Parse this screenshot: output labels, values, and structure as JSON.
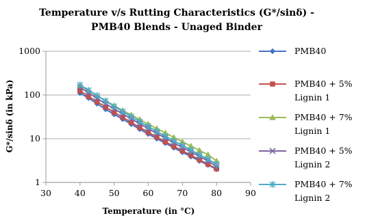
{
  "chart_data": {
    "type": "line",
    "title_lines": [
      "Temperature v/s Rutting Characteristics (G*/sinδ) -",
      "PMB40 Blends - Unaged Binder"
    ],
    "xlabel": "Temperature (in °C)",
    "ylabel": "G*/sinδ (in kPa)",
    "xlim": [
      30,
      90
    ],
    "ylim": [
      1,
      1000
    ],
    "yscale": "log",
    "xticks": [
      "30",
      "40",
      "50",
      "60",
      "70",
      "80",
      "90"
    ],
    "yticks": [
      "1",
      "10",
      "100",
      "1000"
    ],
    "legend_position": "right",
    "x": [
      40,
      42.5,
      45,
      47.5,
      50,
      52.5,
      55,
      57.5,
      60,
      62.5,
      65,
      67.5,
      70,
      72.5,
      75,
      77.5,
      80
    ],
    "series": [
      {
        "legend_lines": [
          "PMB40"
        ],
        "marker": "diamond",
        "color": "#4472C4",
        "values": [
          110,
          85,
          63,
          47,
          36,
          28,
          21.5,
          16.5,
          12.8,
          10.0,
          7.9,
          6.2,
          4.9,
          3.9,
          3.1,
          2.5,
          2.0
        ]
      },
      {
        "legend_lines": [
          "PMB40 + 5%",
          "Lignin 1"
        ],
        "marker": "square",
        "color": "#C0504D",
        "values": [
          125,
          93,
          70,
          53,
          40,
          31,
          23.5,
          18.0,
          14.0,
          10.9,
          8.5,
          6.7,
          5.3,
          4.2,
          3.3,
          2.6,
          2.05
        ]
      },
      {
        "legend_lines": [
          "PMB40 + 7%",
          "Lignin 1"
        ],
        "marker": "triangle",
        "color": "#9BBB59",
        "values": [
          165,
          125,
          96,
          74,
          57,
          44,
          35,
          27.5,
          21.5,
          17.0,
          13.5,
          10.7,
          8.5,
          6.8,
          5.4,
          4.3,
          3.1
        ]
      },
      {
        "legend_lines": [
          "PMB40 + 5%",
          "Lignin 2"
        ],
        "marker": "x",
        "color": "#8064A2",
        "values": [
          150,
          112,
          84,
          63,
          48,
          37,
          28.5,
          22.0,
          17.0,
          13.2,
          10.3,
          8.0,
          6.3,
          5.0,
          3.9,
          3.1,
          2.3
        ]
      },
      {
        "legend_lines": [
          "PMB40 + 7%",
          "Lignin 2"
        ],
        "marker": "star",
        "color": "#4BACC6",
        "values": [
          170,
          128,
          97,
          73,
          55,
          42,
          32,
          24.5,
          19.0,
          14.7,
          11.4,
          8.9,
          7.0,
          5.5,
          4.3,
          3.4,
          2.6
        ]
      }
    ]
  }
}
